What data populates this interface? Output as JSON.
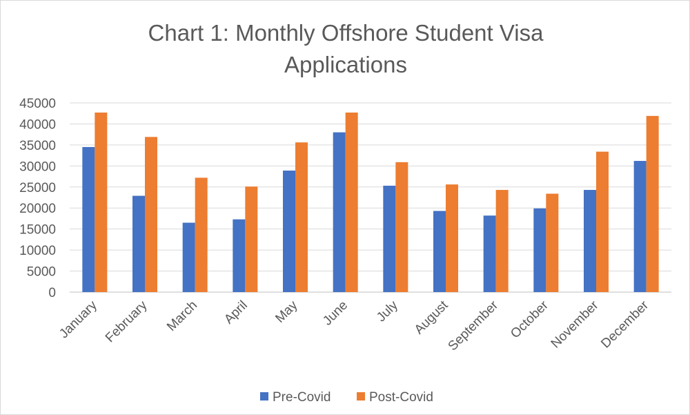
{
  "chart_data": {
    "type": "bar",
    "title_lines": [
      "Chart 1: Monthly Offshore Student Visa",
      "Applications"
    ],
    "categories": [
      "January",
      "February",
      "March",
      "April",
      "May",
      "June",
      "July",
      "August",
      "September",
      "October",
      "November",
      "December"
    ],
    "series": [
      {
        "name": "Pre-Covid",
        "color": "#4472c4",
        "values": [
          34500,
          22900,
          16500,
          17300,
          28900,
          38000,
          25300,
          19300,
          18200,
          19900,
          24300,
          31200
        ]
      },
      {
        "name": "Post-Covid",
        "color": "#ed7d31",
        "values": [
          42700,
          36900,
          27200,
          25100,
          35600,
          42700,
          30900,
          25600,
          24300,
          23400,
          33400,
          41900
        ]
      }
    ],
    "ylim": [
      0,
      45000
    ],
    "yticks": [
      "0",
      "5000",
      "10000",
      "15000",
      "20000",
      "25000",
      "30000",
      "35000",
      "40000",
      "45000"
    ],
    "grid": true,
    "legend_position": "bottom",
    "xlabel": "",
    "ylabel": ""
  }
}
